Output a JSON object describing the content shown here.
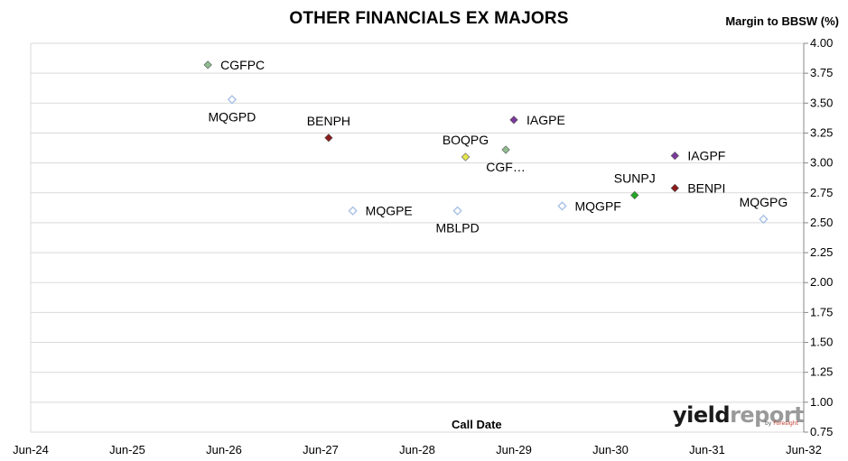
{
  "chart_data": {
    "type": "scatter",
    "title": "OTHER FINANCIALS EX MAJORS",
    "ylabel": "Margin to BBSW (%)",
    "xlabel": "Call Date",
    "ylim": [
      0.75,
      4.0
    ],
    "yticks": [
      "0.75",
      "1.00",
      "1.25",
      "1.50",
      "1.75",
      "2.00",
      "2.25",
      "2.50",
      "2.75",
      "3.00",
      "3.25",
      "3.50",
      "3.75",
      "4.00"
    ],
    "xticks": [
      "Jun-24",
      "Jun-25",
      "Jun-26",
      "Jun-27",
      "Jun-28",
      "Jun-29",
      "Jun-30",
      "Jun-31",
      "Jun-32"
    ],
    "grid": true,
    "points": [
      {
        "label": "CGFPC",
        "x": "Apr-26",
        "y": 3.82,
        "color": "#8fbc8f",
        "label_pos": "right"
      },
      {
        "label": "MQGPD",
        "x": "Jul-26",
        "y": 3.53,
        "color": "#c6d7ee",
        "label_pos": "below"
      },
      {
        "label": "BENPH",
        "x": "Jul-27",
        "y": 3.21,
        "color": "#8b1a1a",
        "label_pos": "above"
      },
      {
        "label": "MQGPE",
        "x": "Oct-27",
        "y": 2.6,
        "color": "#c6d7ee",
        "label_pos": "right"
      },
      {
        "label": "BOQPG",
        "x": "Dec-28",
        "y": 3.05,
        "color": "#e6e64d",
        "label_pos": "above"
      },
      {
        "label": "MBLPD",
        "x": "Nov-28",
        "y": 2.6,
        "color": "#c6d7ee",
        "label_pos": "below"
      },
      {
        "label": "IAGPE",
        "x": "Jun-29",
        "y": 3.36,
        "color": "#7a3a9a",
        "label_pos": "right"
      },
      {
        "label": "CGF…",
        "x": "May-29",
        "y": 3.11,
        "color": "#8fbc8f",
        "label_pos": "below"
      },
      {
        "label": "MQGPF",
        "x": "Dec-29",
        "y": 2.64,
        "color": "#c6d7ee",
        "label_pos": "right"
      },
      {
        "label": "SUNPJ",
        "x": "Sep-30",
        "y": 2.73,
        "color": "#22a822",
        "label_pos": "above"
      },
      {
        "label": "IAGPF",
        "x": "Feb-31",
        "y": 3.06,
        "color": "#7a3a9a",
        "label_pos": "right"
      },
      {
        "label": "BENPI",
        "x": "Feb-31",
        "y": 2.79,
        "color": "#8b1a1a",
        "label_pos": "right"
      },
      {
        "label": "MQGPG",
        "x": "Jan-32",
        "y": 2.53,
        "color": "#c6d7ee",
        "label_pos": "above"
      }
    ]
  },
  "logo": {
    "part1": "yield",
    "part2": "report",
    "by": "by ",
    "brand": "Foresight"
  }
}
